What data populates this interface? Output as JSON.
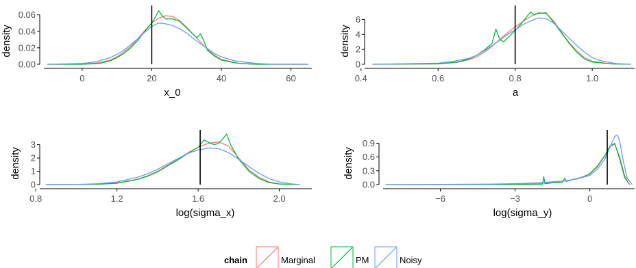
{
  "chart_data": [
    {
      "type": "line",
      "xlabel": "x_0",
      "ylabel": "density",
      "xlim": [
        -11,
        66
      ],
      "ylim": [
        0,
        0.068
      ],
      "xticks": [
        0,
        20,
        40,
        60
      ],
      "xtick_labels": [
        "0",
        "20",
        "40",
        "60"
      ],
      "yticks": [
        0,
        0.02,
        0.04,
        0.06
      ],
      "ytick_labels": [
        "0.00",
        "0.02",
        "0.04",
        "0.06"
      ],
      "true_value": 20,
      "series": [
        {
          "name": "Marginal",
          "x": [
            -10,
            0,
            5,
            8,
            10,
            12,
            14,
            16,
            18,
            20,
            22,
            24,
            26,
            28,
            30,
            32,
            34,
            36,
            38,
            40,
            45,
            50,
            55,
            65
          ],
          "y": [
            0,
            0,
            0.002,
            0.005,
            0.009,
            0.015,
            0.022,
            0.031,
            0.041,
            0.05,
            0.056,
            0.059,
            0.058,
            0.053,
            0.045,
            0.036,
            0.027,
            0.018,
            0.011,
            0.006,
            0.001,
            0,
            0,
            0
          ]
        },
        {
          "name": "PM",
          "x": [
            -10,
            0,
            5,
            8,
            10,
            12,
            14,
            16,
            18,
            20,
            21,
            22,
            23,
            24,
            26,
            28,
            30,
            32,
            33,
            34,
            35,
            36,
            38,
            40,
            45,
            50,
            55,
            65
          ],
          "y": [
            0,
            0,
            0.001,
            0.004,
            0.008,
            0.013,
            0.02,
            0.029,
            0.04,
            0.05,
            0.057,
            0.065,
            0.059,
            0.055,
            0.055,
            0.052,
            0.044,
            0.036,
            0.032,
            0.037,
            0.028,
            0.017,
            0.01,
            0.005,
            0.001,
            0,
            0,
            0
          ]
        },
        {
          "name": "Noisy",
          "x": [
            -10,
            0,
            4,
            8,
            10,
            12,
            14,
            16,
            18,
            20,
            22,
            24,
            26,
            28,
            30,
            32,
            34,
            36,
            38,
            40,
            44,
            50,
            55,
            65
          ],
          "y": [
            0,
            0.001,
            0.003,
            0.008,
            0.012,
            0.017,
            0.024,
            0.031,
            0.039,
            0.046,
            0.05,
            0.049,
            0.047,
            0.043,
            0.038,
            0.031,
            0.025,
            0.019,
            0.013,
            0.009,
            0.004,
            0.001,
            0,
            0
          ]
        }
      ]
    },
    {
      "type": "line",
      "xlabel": "a",
      "ylabel": "density",
      "xlim": [
        0.42,
        1.11
      ],
      "ylim": [
        0,
        7.5
      ],
      "xticks": [
        0.4,
        0.6,
        0.8,
        1.0
      ],
      "xtick_labels": [
        "0.4",
        "0.6",
        "0.8",
        "1.0"
      ],
      "yticks": [
        0,
        2,
        4,
        6
      ],
      "ytick_labels": [
        "0",
        "2",
        "4",
        "6"
      ],
      "true_value": 0.8,
      "series": [
        {
          "name": "Marginal",
          "x": [
            0.43,
            0.6,
            0.65,
            0.68,
            0.7,
            0.72,
            0.74,
            0.76,
            0.78,
            0.8,
            0.82,
            0.84,
            0.86,
            0.88,
            0.9,
            0.92,
            0.94,
            0.96,
            0.98,
            1.0,
            1.05,
            1.1
          ],
          "y": [
            0,
            0.05,
            0.25,
            0.6,
            1.0,
            1.6,
            2.4,
            3.3,
            4.2,
            5.0,
            5.7,
            6.4,
            6.9,
            6.8,
            5.8,
            4.3,
            2.9,
            1.8,
            0.9,
            0.4,
            0.05,
            0
          ]
        },
        {
          "name": "PM",
          "x": [
            0.43,
            0.6,
            0.65,
            0.68,
            0.7,
            0.72,
            0.74,
            0.75,
            0.76,
            0.77,
            0.78,
            0.8,
            0.82,
            0.84,
            0.85,
            0.86,
            0.88,
            0.9,
            0.92,
            0.94,
            0.96,
            0.98,
            1.0,
            1.05,
            1.1
          ],
          "y": [
            0,
            0.05,
            0.3,
            0.7,
            1.2,
            1.9,
            2.8,
            4.7,
            3.3,
            3.0,
            3.5,
            4.5,
            5.7,
            7.0,
            6.6,
            6.8,
            6.9,
            5.6,
            4.2,
            2.8,
            1.6,
            0.7,
            0.3,
            0.05,
            0
          ]
        },
        {
          "name": "Noisy",
          "x": [
            0.43,
            0.6,
            0.64,
            0.68,
            0.7,
            0.72,
            0.74,
            0.76,
            0.78,
            0.8,
            0.82,
            0.84,
            0.86,
            0.88,
            0.9,
            0.92,
            0.94,
            0.96,
            0.98,
            1.0,
            1.02,
            1.06,
            1.1
          ],
          "y": [
            0,
            0.15,
            0.4,
            0.8,
            1.2,
            1.8,
            2.5,
            3.2,
            4.0,
            4.6,
            5.3,
            5.8,
            6.2,
            6.1,
            5.5,
            4.5,
            3.5,
            2.5,
            1.6,
            0.9,
            0.5,
            0.1,
            0
          ]
        }
      ]
    },
    {
      "type": "line",
      "xlabel": "log(sigma_x)",
      "ylabel": "density",
      "xlim": [
        0.84,
        2.16
      ],
      "ylim": [
        0,
        3.8
      ],
      "xticks": [
        0.8,
        1.2,
        1.6,
        2.0
      ],
      "xtick_labels": [
        "0.8",
        "1.2",
        "1.6",
        "2.0"
      ],
      "yticks": [
        0,
        1,
        2,
        3
      ],
      "ytick_labels": [
        "0",
        "1",
        "2",
        "3"
      ],
      "true_value": 1.61,
      "series": [
        {
          "name": "Marginal",
          "x": [
            0.85,
            1.1,
            1.2,
            1.3,
            1.35,
            1.4,
            1.45,
            1.5,
            1.55,
            1.6,
            1.65,
            1.7,
            1.75,
            1.8,
            1.85,
            1.9,
            1.95,
            2.0,
            2.1
          ],
          "y": [
            0,
            0.02,
            0.12,
            0.4,
            0.65,
            1.0,
            1.45,
            1.9,
            2.4,
            2.8,
            3.1,
            3.2,
            2.9,
            2.0,
            1.1,
            0.55,
            0.2,
            0.05,
            0
          ]
        },
        {
          "name": "PM",
          "x": [
            0.85,
            1.1,
            1.2,
            1.3,
            1.35,
            1.4,
            1.45,
            1.5,
            1.55,
            1.6,
            1.63,
            1.66,
            1.68,
            1.7,
            1.72,
            1.74,
            1.76,
            1.8,
            1.85,
            1.9,
            1.95,
            2.0,
            2.1
          ],
          "y": [
            0,
            0.02,
            0.1,
            0.38,
            0.62,
            0.95,
            1.4,
            1.85,
            2.35,
            2.8,
            3.35,
            3.1,
            3.0,
            3.1,
            3.4,
            3.8,
            3.0,
            1.9,
            1.0,
            0.45,
            0.15,
            0.04,
            0
          ]
        },
        {
          "name": "Noisy",
          "x": [
            0.85,
            1.0,
            1.1,
            1.2,
            1.3,
            1.35,
            1.4,
            1.45,
            1.5,
            1.55,
            1.6,
            1.65,
            1.7,
            1.75,
            1.8,
            1.85,
            1.9,
            1.95,
            2.0,
            2.05,
            2.1
          ],
          "y": [
            0,
            0.01,
            0.06,
            0.2,
            0.55,
            0.8,
            1.15,
            1.55,
            1.95,
            2.35,
            2.6,
            2.75,
            2.7,
            2.4,
            1.9,
            1.35,
            0.85,
            0.45,
            0.2,
            0.07,
            0
          ]
        }
      ]
    },
    {
      "type": "line",
      "xlabel": "log(sigma_y)",
      "ylabel": "density",
      "xlim": [
        -8.3,
        1.8
      ],
      "ylim": [
        0,
        1.1
      ],
      "xticks": [
        -6,
        -3,
        0
      ],
      "xtick_labels": [
        "−6",
        "−3",
        "0"
      ],
      "yticks": [
        0,
        0.3,
        0.6,
        0.9
      ],
      "ytick_labels": [
        "0.0",
        "0.3",
        "0.6",
        "0.9"
      ],
      "true_value": 0.7,
      "series": [
        {
          "name": "Marginal",
          "x": [
            -8.2,
            -6,
            -4,
            -3,
            -2.5,
            -2,
            -1.5,
            -1,
            -0.5,
            0,
            0.3,
            0.6,
            0.8,
            1.0,
            1.2,
            1.4,
            1.6
          ],
          "y": [
            0,
            0,
            0.005,
            0.01,
            0.02,
            0.03,
            0.05,
            0.08,
            0.13,
            0.23,
            0.38,
            0.62,
            0.82,
            0.88,
            0.6,
            0.2,
            0
          ]
        },
        {
          "name": "PM",
          "x": [
            -8.2,
            -3.5,
            -2.6,
            -2.0,
            -1.9,
            -1.85,
            -1.8,
            -1.5,
            -1.1,
            -1.0,
            -0.95,
            -0.6,
            -0.3,
            0,
            0.3,
            0.6,
            0.8,
            1.0,
            1.2,
            1.4,
            1.6
          ],
          "y": [
            0,
            0,
            0,
            0.01,
            0.01,
            0.17,
            0.02,
            0.04,
            0.05,
            0.14,
            0.07,
            0.12,
            0.15,
            0.24,
            0.4,
            0.63,
            0.83,
            0.9,
            0.55,
            0.15,
            0
          ]
        },
        {
          "name": "Noisy",
          "x": [
            -8.2,
            -6,
            -4,
            -3,
            -2,
            -1,
            -0.5,
            0,
            0.3,
            0.6,
            0.8,
            1.0,
            1.1,
            1.2,
            1.35,
            1.5,
            1.7
          ],
          "y": [
            0,
            0.005,
            0.01,
            0.02,
            0.04,
            0.08,
            0.12,
            0.2,
            0.33,
            0.55,
            0.8,
            1.05,
            1.08,
            0.95,
            0.5,
            0.15,
            0
          ]
        }
      ]
    }
  ],
  "legend": {
    "title": "chain",
    "items": [
      {
        "label": "Marginal",
        "color": "#F8766D"
      },
      {
        "label": "PM",
        "color": "#00BA38"
      },
      {
        "label": "Noisy",
        "color": "#619CFF"
      }
    ]
  },
  "colors": {
    "Marginal": "#F8766D",
    "PM": "#00BA38",
    "Noisy": "#619CFF",
    "true_value_line": "#000000",
    "axis": "#000000"
  }
}
